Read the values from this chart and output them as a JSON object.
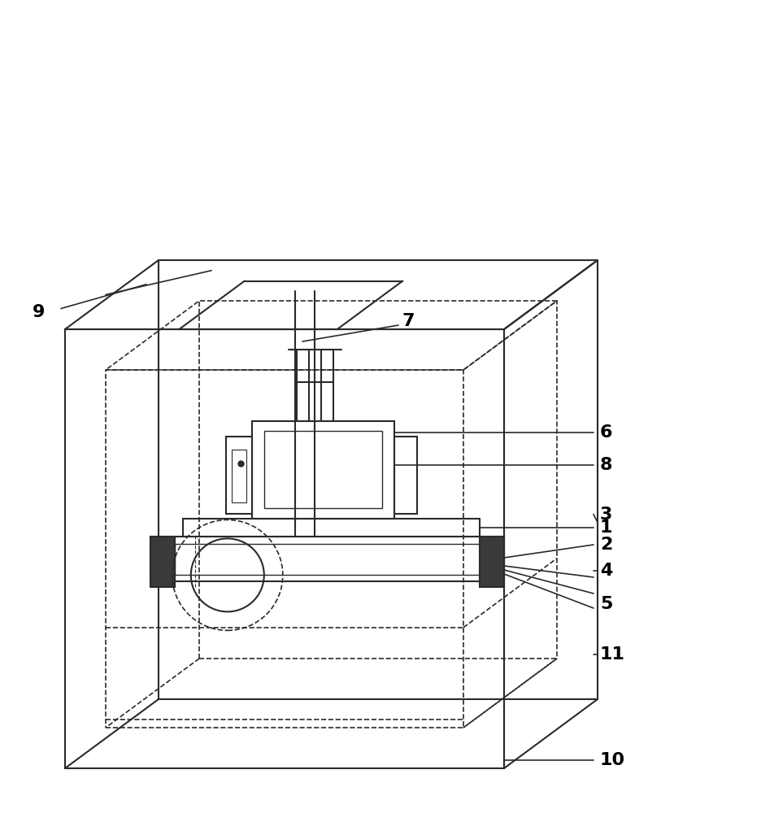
{
  "bg_color": "#ffffff",
  "line_color": "#2a2a2a",
  "label_color": "#000000",
  "fig_width": 9.53,
  "fig_height": 10.0
}
